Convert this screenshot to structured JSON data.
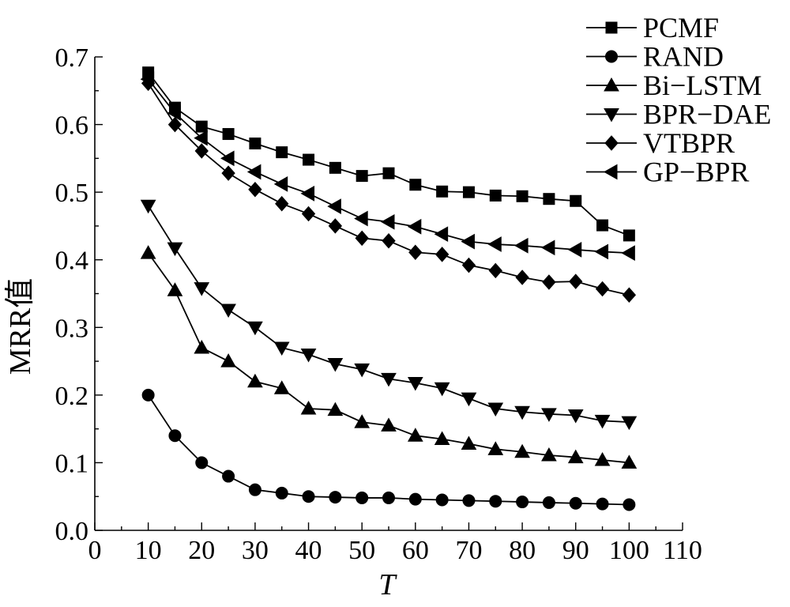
{
  "chart_data": {
    "type": "line",
    "xlabel": "T",
    "ylabel": "MRR值",
    "xlim": [
      0,
      110
    ],
    "ylim": [
      0.0,
      0.7
    ],
    "xticks": [
      0,
      10,
      20,
      30,
      40,
      50,
      60,
      70,
      80,
      90,
      100,
      110
    ],
    "yticks": [
      0.0,
      0.1,
      0.2,
      0.3,
      0.4,
      0.5,
      0.6,
      0.7
    ],
    "xtick_labels": [
      "0",
      "10",
      "20",
      "30",
      "40",
      "50",
      "60",
      "70",
      "80",
      "90",
      "100",
      "110"
    ],
    "ytick_labels": [
      "0.0",
      "0.1",
      "0.2",
      "0.3",
      "0.4",
      "0.5",
      "0.6",
      "0.7"
    ],
    "grid": false,
    "legend_position": "top-right",
    "x": [
      10,
      15,
      20,
      25,
      30,
      35,
      40,
      45,
      50,
      55,
      60,
      65,
      70,
      75,
      80,
      85,
      90,
      95,
      100
    ],
    "series": [
      {
        "name": "PCMF",
        "marker": "square",
        "values": [
          0.677,
          0.625,
          0.597,
          0.586,
          0.572,
          0.559,
          0.548,
          0.536,
          0.524,
          0.528,
          0.511,
          0.501,
          0.5,
          0.495,
          0.494,
          0.49,
          0.487,
          0.451,
          0.436
        ]
      },
      {
        "name": "RAND",
        "marker": "circle",
        "values": [
          0.2,
          0.14,
          0.1,
          0.08,
          0.06,
          0.055,
          0.05,
          0.049,
          0.048,
          0.048,
          0.046,
          0.045,
          0.044,
          0.043,
          0.042,
          0.041,
          0.04,
          0.039,
          0.038
        ]
      },
      {
        "name": "Bi−LSTM",
        "marker": "triangle-up",
        "values": [
          0.41,
          0.355,
          0.27,
          0.25,
          0.22,
          0.21,
          0.18,
          0.178,
          0.16,
          0.155,
          0.14,
          0.135,
          0.128,
          0.12,
          0.116,
          0.111,
          0.108,
          0.104,
          0.1
        ]
      },
      {
        "name": "BPR−DAE",
        "marker": "triangle-down",
        "values": [
          0.48,
          0.417,
          0.358,
          0.326,
          0.3,
          0.27,
          0.26,
          0.246,
          0.238,
          0.224,
          0.218,
          0.21,
          0.195,
          0.18,
          0.175,
          0.172,
          0.17,
          0.162,
          0.16
        ]
      },
      {
        "name": "VTBPR",
        "marker": "diamond",
        "values": [
          0.661,
          0.6,
          0.561,
          0.528,
          0.504,
          0.483,
          0.468,
          0.45,
          0.432,
          0.428,
          0.411,
          0.408,
          0.392,
          0.384,
          0.374,
          0.367,
          0.368,
          0.357,
          0.348
        ]
      },
      {
        "name": "GP−BPR",
        "marker": "triangle-left",
        "values": [
          0.667,
          0.617,
          0.58,
          0.55,
          0.53,
          0.512,
          0.498,
          0.479,
          0.461,
          0.456,
          0.449,
          0.438,
          0.427,
          0.423,
          0.421,
          0.418,
          0.415,
          0.412,
          0.41
        ]
      }
    ]
  }
}
